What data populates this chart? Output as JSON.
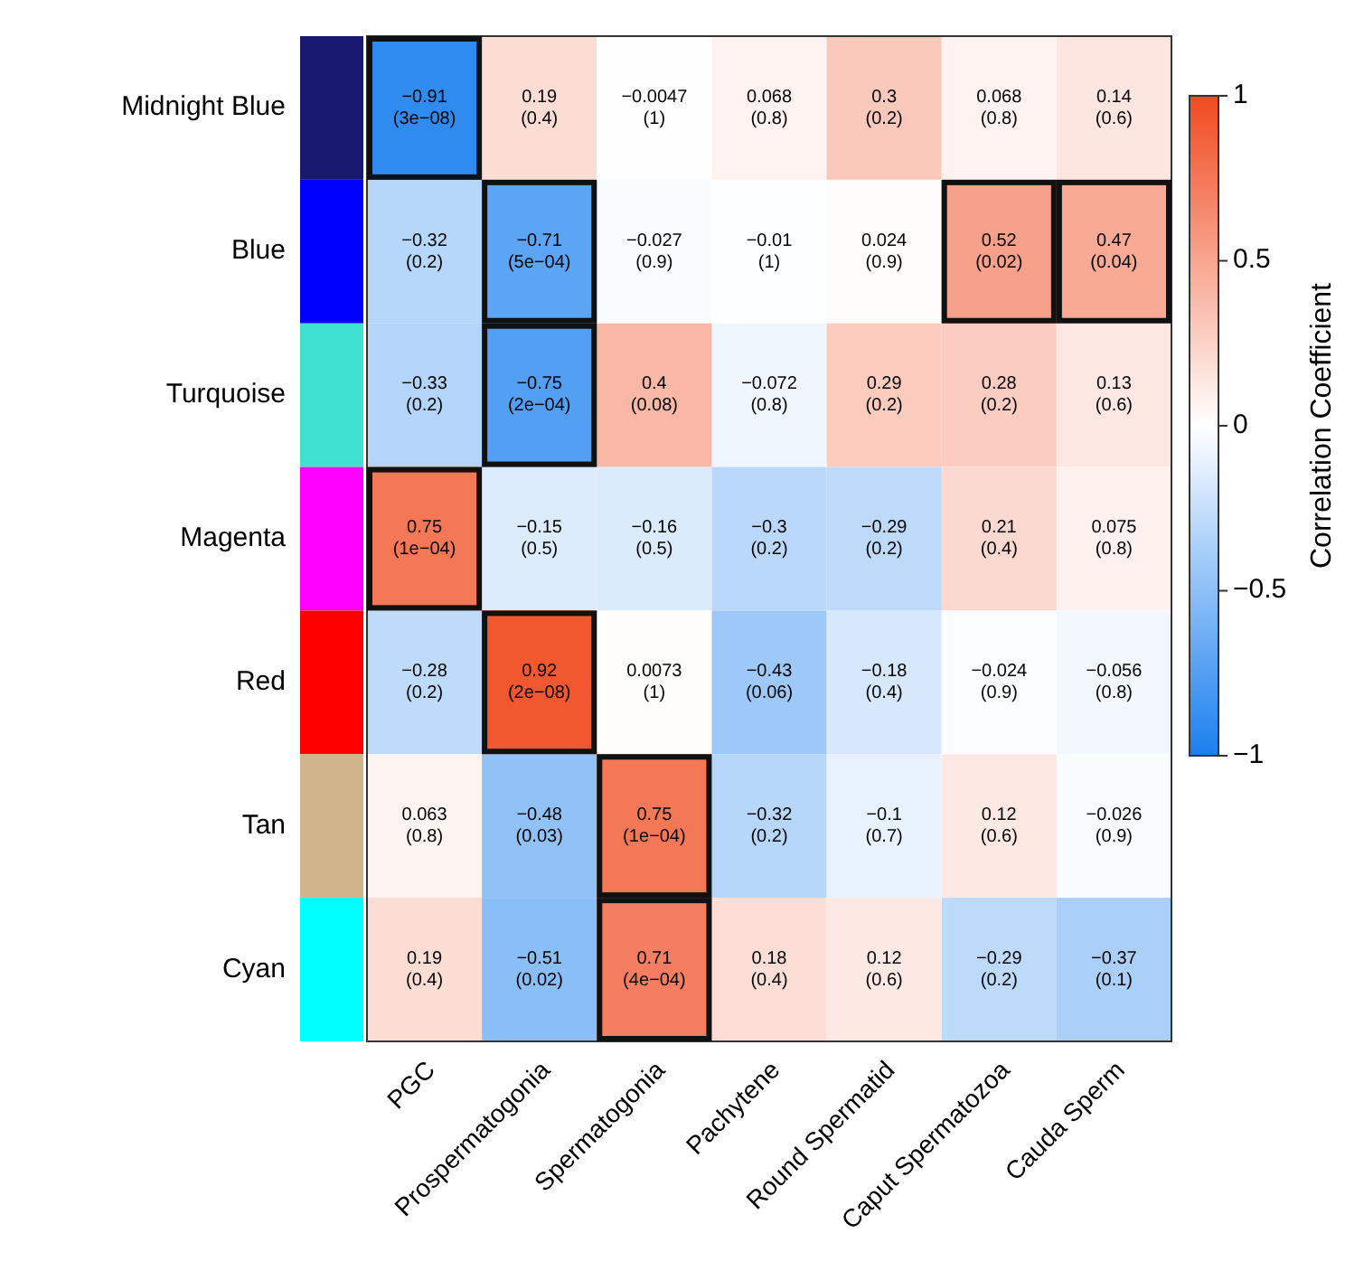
{
  "chart_data": {
    "type": "heatmap",
    "clabel": "Correlation Coefficient",
    "categories": [
      "PGC",
      "Prospermatogonia",
      "Spermatogonia",
      "Pachytene",
      "Round Spermatid",
      "Caput Spermatozoa",
      "Cauda Sperm"
    ],
    "y_categories": [
      "Midnight Blue",
      "Blue",
      "Turquoise",
      "Magenta",
      "Red",
      "Tan",
      "Cyan"
    ],
    "cells": [
      [
        -0.91,
        0.19,
        -0.0047,
        0.068,
        0.3,
        0.068,
        0.14
      ],
      [
        -0.32,
        -0.71,
        -0.027,
        -0.01,
        0.024,
        0.52,
        0.47
      ],
      [
        -0.33,
        -0.75,
        0.4,
        -0.072,
        0.29,
        0.28,
        0.13
      ],
      [
        0.75,
        -0.15,
        -0.16,
        -0.3,
        -0.29,
        0.21,
        0.075
      ],
      [
        -0.28,
        0.92,
        0.0073,
        -0.43,
        -0.18,
        -0.024,
        -0.056
      ],
      [
        0.063,
        -0.48,
        0.75,
        -0.32,
        -0.1,
        0.12,
        -0.026
      ],
      [
        0.19,
        -0.51,
        0.71,
        0.18,
        0.12,
        -0.29,
        -0.37
      ]
    ],
    "cell_labels": [
      [
        "−0.91\n(3e−08)",
        "0.19\n(0.4)",
        "−0.0047\n(1)",
        "0.068\n(0.8)",
        "0.3\n(0.2)",
        "0.068\n(0.8)",
        "0.14\n(0.6)"
      ],
      [
        "−0.32\n(0.2)",
        "−0.71\n(5e−04)",
        "−0.027\n(0.9)",
        "−0.01\n(1)",
        "0.024\n(0.9)",
        "0.52\n(0.02)",
        "0.47\n(0.04)"
      ],
      [
        "−0.33\n(0.2)",
        "−0.75\n(2e−04)",
        "0.4\n(0.08)",
        "−0.072\n(0.8)",
        "0.29\n(0.2)",
        "0.28\n(0.2)",
        "0.13\n(0.6)"
      ],
      [
        "0.75\n(1e−04)",
        "−0.15\n(0.5)",
        "−0.16\n(0.5)",
        "−0.3\n(0.2)",
        "−0.29\n(0.2)",
        "0.21\n(0.4)",
        "0.075\n(0.8)"
      ],
      [
        "−0.28\n(0.2)",
        "0.92\n(2e−08)",
        "0.0073\n(1)",
        "−0.43\n(0.06)",
        "−0.18\n(0.4)",
        "−0.024\n(0.9)",
        "−0.056\n(0.8)"
      ],
      [
        "0.063\n(0.8)",
        "−0.48\n(0.03)",
        "0.75\n(1e−04)",
        "−0.32\n(0.2)",
        "−0.1\n(0.7)",
        "0.12\n(0.6)",
        "−0.026\n(0.9)"
      ],
      [
        "0.19\n(0.4)",
        "−0.51\n(0.02)",
        "0.71\n(4e−04)",
        "0.18\n(0.4)",
        "0.12\n(0.6)",
        "−0.29\n(0.2)",
        "−0.37\n(0.1)"
      ]
    ],
    "clim": [
      -1,
      1
    ],
    "cticks": [
      {
        "value": -1,
        "label": "−1"
      },
      {
        "value": -0.5,
        "label": "−0.5"
      },
      0,
      {
        "value": 0.5,
        "label": "0.5"
      },
      1
    ]
  }
}
